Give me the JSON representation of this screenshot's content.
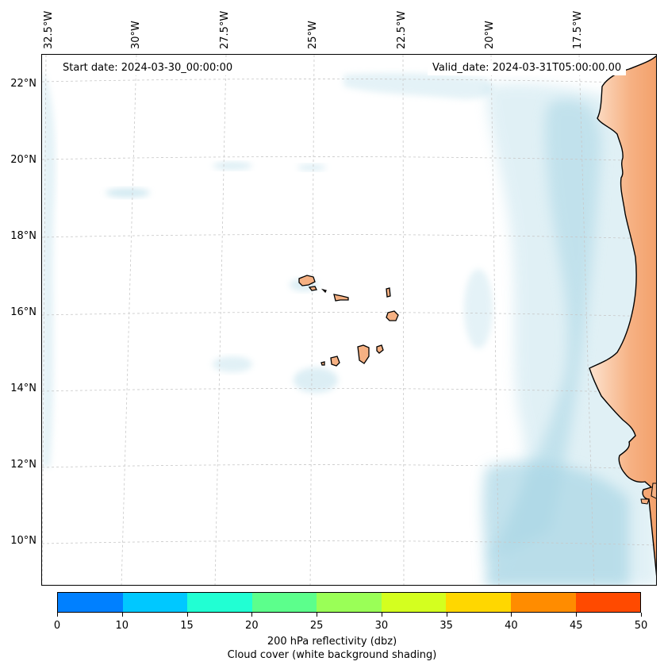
{
  "map": {
    "region": "Cape Verde / West African coast",
    "longitude_labels": [
      "32.5°W",
      "30°W",
      "27.5°W",
      "25°W",
      "22.5°W",
      "20°W",
      "17.5°W"
    ],
    "latitude_labels": [
      "22°N",
      "20°N",
      "18°N",
      "16°N",
      "14°N",
      "12°N",
      "10°N"
    ],
    "start_date": "Start date: 2024-03-30_00:00:00",
    "valid_date": "Valid_date: 2024-03-31T05:00:00.00",
    "colors": {
      "cloud": "#a9d6e5",
      "land": "#f6b183",
      "coast": "#000000",
      "grid": "#c8c8c8"
    }
  },
  "colorbar": {
    "tick_labels": [
      "0",
      "10",
      "15",
      "20",
      "25",
      "30",
      "35",
      "40",
      "45",
      "50"
    ],
    "colors": [
      "#0080ff",
      "#00c8ff",
      "#21ffd3",
      "#5cff8c",
      "#9aff57",
      "#d4ff1f",
      "#ffd700",
      "#ff8c00",
      "#ff4a00"
    ],
    "label_line1": "200 hPa reflectivity (dbz)",
    "label_line2": "Cloud cover (white background shading)"
  }
}
